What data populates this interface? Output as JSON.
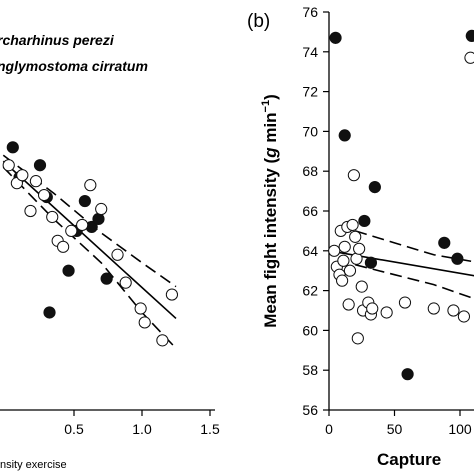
{
  "chart_data": [
    {
      "type": "scatter",
      "panel_label": "",
      "legend": {
        "entries": [
          "rcharhinus perezi",
          "nglymostoma cirratum"
        ],
        "placement": "top-left"
      },
      "xlabel": "nsity exercise",
      "ylabel": "",
      "xlim": [
        -0.02,
        1.5
      ],
      "ylim": [
        56,
        76
      ],
      "xticks": [
        {
          "v": 0.5,
          "label": "0.5"
        },
        {
          "v": 1.0,
          "label": "1.0"
        },
        {
          "v": 1.5,
          "label": "1.5"
        }
      ],
      "series": [
        {
          "name": "",
          "marker": "filled-circle",
          "color": "#111111",
          "x": [
            0.05,
            0.1,
            0.25,
            0.3,
            0.32,
            0.46,
            0.52,
            0.58,
            0.63,
            0.68,
            0.74
          ],
          "y": [
            69.2,
            67.7,
            68.3,
            66.7,
            60.9,
            63.0,
            65.0,
            66.5,
            65.2,
            65.6,
            62.6
          ]
        },
        {
          "name": "",
          "marker": "open-circle",
          "color": "#ffffff",
          "x": [
            0.02,
            0.08,
            0.12,
            0.18,
            0.22,
            0.28,
            0.34,
            0.38,
            0.42,
            0.48,
            0.56,
            0.62,
            0.7,
            0.82,
            0.88,
            0.99,
            1.02,
            1.15,
            1.22
          ],
          "y": [
            68.3,
            67.4,
            67.8,
            66.0,
            67.5,
            66.8,
            65.7,
            64.5,
            64.2,
            65.0,
            65.3,
            67.3,
            66.1,
            63.8,
            62.4,
            61.1,
            60.4,
            59.5,
            61.8
          ]
        }
      ],
      "fit": {
        "x": [
          -0.02,
          1.25
        ],
        "y": [
          68.5,
          60.6
        ]
      },
      "ci_upper": {
        "x": [
          -0.02,
          0.35,
          0.7,
          1.0,
          1.25
        ],
        "y": [
          68.8,
          66.9,
          64.9,
          63.4,
          62.2
        ]
      },
      "ci_lower": {
        "x": [
          -0.02,
          0.35,
          0.7,
          1.0,
          1.25
        ],
        "y": [
          68.2,
          65.6,
          63.4,
          60.9,
          59.1
        ]
      }
    },
    {
      "type": "scatter",
      "panel_label": "(b)",
      "legend": null,
      "xlabel": "Capture",
      "ylabel": "Mean fight intensity (g min−1)",
      "ylabel_parts": [
        "Mean fight intensity (",
        "g",
        " min",
        "−1",
        ")"
      ],
      "xlim": [
        0,
        115
      ],
      "ylim": [
        56,
        76
      ],
      "xticks": [
        {
          "v": 0,
          "label": "0"
        },
        {
          "v": 50,
          "label": "50"
        },
        {
          "v": 100,
          "label": "100"
        }
      ],
      "yticks": [
        56,
        58,
        60,
        62,
        64,
        66,
        68,
        70,
        72,
        74,
        76
      ],
      "series": [
        {
          "name": "",
          "marker": "filled-circle",
          "color": "#111111",
          "x": [
            5,
            12,
            27,
            32,
            35,
            60,
            88,
            98,
            109
          ],
          "y": [
            74.7,
            69.8,
            65.5,
            63.4,
            67.2,
            57.8,
            64.4,
            63.6,
            74.8
          ]
        },
        {
          "name": "",
          "marker": "open-circle",
          "color": "#ffffff",
          "x": [
            4,
            6,
            8,
            9,
            10,
            11,
            12,
            14,
            15,
            16,
            18,
            19,
            20,
            21,
            22,
            23,
            25,
            26,
            30,
            32,
            33,
            44,
            58,
            80,
            95,
            103,
            108
          ],
          "y": [
            64.0,
            63.2,
            62.8,
            65.0,
            62.5,
            63.5,
            64.2,
            65.2,
            61.3,
            63.0,
            65.3,
            67.8,
            64.7,
            63.6,
            59.6,
            64.1,
            62.2,
            61.0,
            61.4,
            60.8,
            61.1,
            60.9,
            61.4,
            61.1,
            61.0,
            60.7,
            73.7
          ]
        }
      ],
      "fit": {
        "x": [
          0,
          115
        ],
        "y": [
          64.0,
          62.7
        ]
      },
      "ci_upper": {
        "x": [
          20,
          50,
          80,
          115
        ],
        "y": [
          65.0,
          64.4,
          63.8,
          63.4
        ]
      },
      "ci_lower": {
        "x": [
          20,
          50,
          80,
          115
        ],
        "y": [
          63.3,
          62.8,
          62.3,
          61.5
        ]
      }
    }
  ]
}
